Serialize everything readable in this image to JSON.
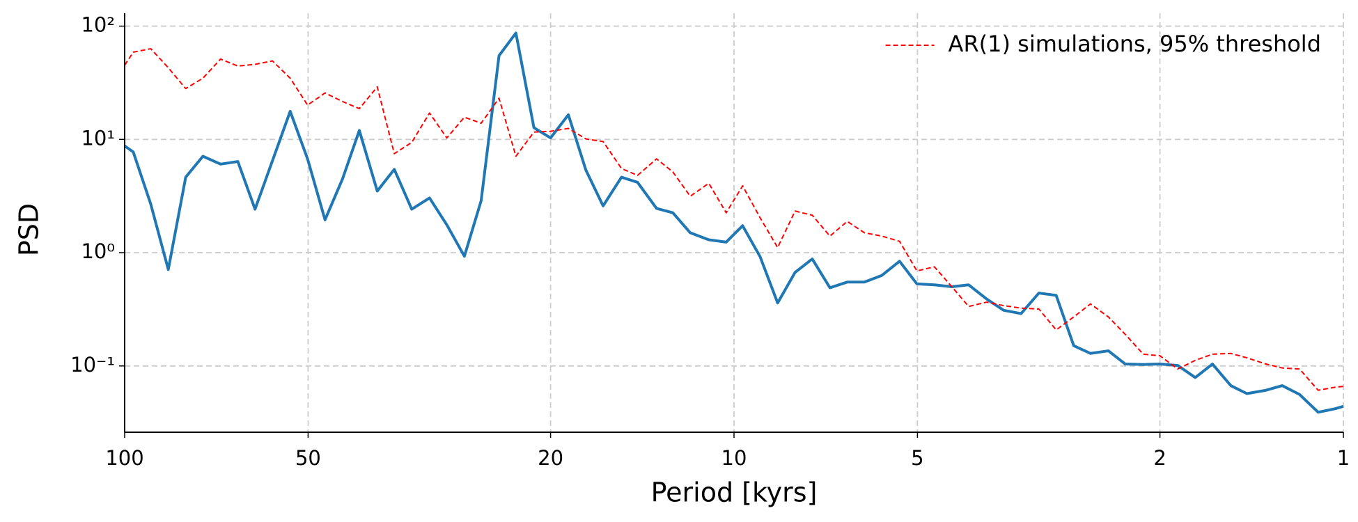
{
  "chart_data": {
    "type": "line",
    "x_label": "Period [kyrs]",
    "y_label": "PSD",
    "x_log": true,
    "y_log": true,
    "grid": true,
    "legend": "upper right",
    "xlim": [
      100,
      1
    ],
    "ylim": [
      0.026,
      130
    ],
    "xticks": [
      100,
      50,
      20,
      10,
      5,
      2,
      1
    ],
    "yticks": [
      {
        "value": 100,
        "label": "10²"
      },
      {
        "value": 10,
        "label": "10¹"
      },
      {
        "value": 1,
        "label": "10⁰"
      },
      {
        "value": 0.1,
        "label": "10⁻¹"
      }
    ],
    "x": [
      100,
      96.8,
      90.6,
      84.8,
      79.4,
      74.4,
      69.6,
      65.2,
      61.1,
      57.2,
      53.5,
      50.1,
      46.9,
      43.9,
      41.2,
      38.5,
      36.1,
      33.8,
      31.6,
      29.6,
      27.7,
      26.0,
      24.3,
      22.8,
      21.3,
      20.0,
      18.7,
      17.5,
      16.4,
      15.3,
      14.4,
      13.4,
      12.6,
      11.8,
      11.0,
      10.3,
      9.68,
      9.06,
      8.48,
      7.94,
      7.44,
      6.96,
      6.52,
      6.11,
      5.72,
      5.35,
      5.01,
      4.69,
      4.39,
      4.12,
      3.85,
      3.61,
      3.38,
      3.16,
      2.96,
      2.77,
      2.6,
      2.43,
      2.28,
      2.13,
      2.0,
      1.87,
      1.75,
      1.64,
      1.53,
      1.44,
      1.34,
      1.26,
      1.18,
      1.1,
      1.03,
      1
    ],
    "series": [
      {
        "color": "#1f77b4",
        "style": "solid",
        "values": [
          8.77,
          7.74,
          2.68,
          0.71,
          4.64,
          7.1,
          6.05,
          6.38,
          2.42,
          6.49,
          17.7,
          6.73,
          1.95,
          4.48,
          12.0,
          3.5,
          5.44,
          2.42,
          3.04,
          1.76,
          0.93,
          2.88,
          54.9,
          86.9,
          12.7,
          10.3,
          16.5,
          5.35,
          2.59,
          4.64,
          4.18,
          2.46,
          2.25,
          1.5,
          1.3,
          1.24,
          1.73,
          0.92,
          0.36,
          0.67,
          0.88,
          0.49,
          0.55,
          0.55,
          0.63,
          0.84,
          0.53,
          0.52,
          0.5,
          0.52,
          0.39,
          0.31,
          0.29,
          0.44,
          0.42,
          0.151,
          0.129,
          0.136,
          0.104,
          0.103,
          0.104,
          0.101,
          0.079,
          0.104,
          0.067,
          0.057,
          0.061,
          0.067,
          0.056,
          0.039,
          0.042,
          0.044
        ]
      },
      {
        "name": "AR(1) simulations, 95% threshold",
        "color": "#ff0000",
        "style": "dashed",
        "values": [
          45.2,
          58.9,
          63.2,
          42.9,
          28.1,
          34.7,
          51.2,
          44.4,
          46.0,
          49.3,
          34.7,
          20.1,
          25.7,
          21.6,
          18.7,
          29.1,
          7.48,
          9.4,
          17.1,
          10.3,
          15.7,
          13.9,
          23.1,
          7.1,
          11.6,
          11.8,
          12.5,
          10.1,
          9.57,
          5.54,
          4.81,
          6.73,
          5.16,
          3.15,
          4.1,
          2.25,
          3.89,
          2.03,
          1.11,
          2.33,
          2.14,
          1.4,
          1.89,
          1.5,
          1.4,
          1.26,
          0.69,
          0.75,
          0.5,
          0.335,
          0.366,
          0.341,
          0.324,
          0.318,
          0.208,
          0.271,
          0.353,
          0.271,
          0.19,
          0.127,
          0.123,
          0.094,
          0.112,
          0.127,
          0.129,
          0.118,
          0.104,
          0.096,
          0.094,
          0.061,
          0.065,
          0.066
        ]
      }
    ]
  }
}
